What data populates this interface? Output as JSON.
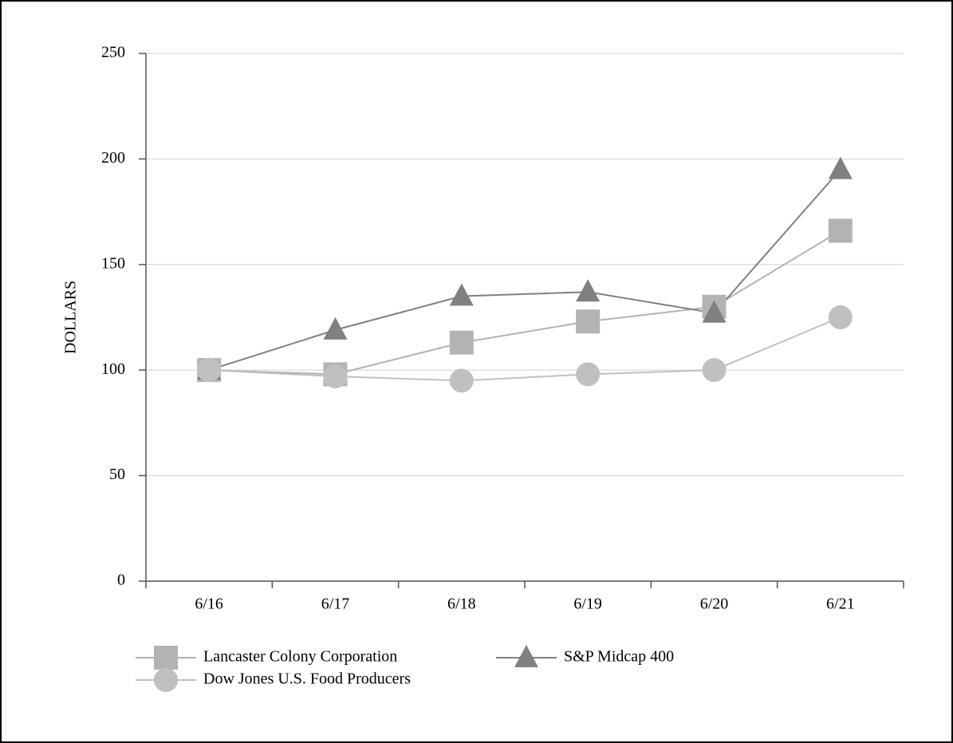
{
  "chart_data": {
    "type": "line",
    "y_label": "DOLLARS",
    "categories": [
      "6/16",
      "6/17",
      "6/18",
      "6/19",
      "6/20",
      "6/21"
    ],
    "series": [
      {
        "name": "Lancaster Colony Corporation",
        "color": "#b3b3b3",
        "marker": "square",
        "values": [
          100,
          98,
          113,
          123,
          130,
          166
        ]
      },
      {
        "name": "S&P Midcap 400",
        "color": "#808080",
        "marker": "triangle",
        "values": [
          100,
          119,
          135,
          137,
          127,
          195
        ]
      },
      {
        "name": "Dow Jones U.S. Food Producers",
        "color": "#c0c0c0",
        "marker": "circle",
        "values": [
          100,
          97,
          95,
          98,
          100,
          125
        ]
      }
    ],
    "ylim": [
      0,
      250
    ],
    "yticks": [
      0,
      50,
      100,
      150,
      200,
      250
    ],
    "grid": true
  }
}
